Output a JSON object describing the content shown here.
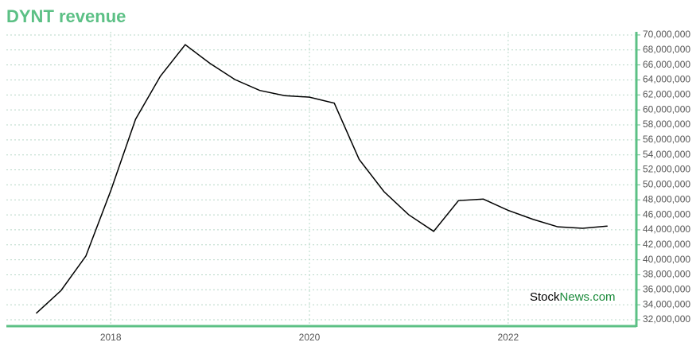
{
  "chart_data": {
    "type": "line",
    "title": "DYNT revenue",
    "x": [
      2017.25,
      2017.5,
      2017.75,
      2018.0,
      2018.25,
      2018.5,
      2018.75,
      2019.0,
      2019.25,
      2019.5,
      2019.75,
      2020.0,
      2020.25,
      2020.5,
      2020.75,
      2021.0,
      2021.25,
      2021.5,
      2021.75,
      2022.0,
      2022.25,
      2022.5,
      2022.75,
      2023.0
    ],
    "series": [
      {
        "name": "DYNT revenue",
        "color": "#000000",
        "values": [
          32850000,
          35900000,
          40500000,
          49200000,
          58750000,
          64500000,
          68700000,
          66200000,
          64050000,
          62600000,
          61900000,
          61700000,
          60900000,
          53400000,
          49100000,
          46000000,
          43800000,
          47900000,
          48100000,
          46600000,
          45400000,
          44400000,
          44200000,
          44500000
        ]
      }
    ],
    "xlim": [
      2016.95,
      2023.29
    ],
    "xticks": [
      2018,
      2020,
      2022
    ],
    "ylim": [
      31150000,
      70420000
    ],
    "yticks": [
      {
        "value": 32000000,
        "label": "32,000,000"
      },
      {
        "value": 34000000,
        "label": "34,000,000"
      },
      {
        "value": 36000000,
        "label": "36,000,000"
      },
      {
        "value": 38000000,
        "label": "38,000,000"
      },
      {
        "value": 40000000,
        "label": "40,000,000"
      },
      {
        "value": 42000000,
        "label": "42,000,000"
      },
      {
        "value": 44000000,
        "label": "44,000,000"
      },
      {
        "value": 46000000,
        "label": "46,000,000"
      },
      {
        "value": 48000000,
        "label": "48,000,000"
      },
      {
        "value": 50000000,
        "label": "50,000,000"
      },
      {
        "value": 52000000,
        "label": "52,000,000"
      },
      {
        "value": 54000000,
        "label": "54,000,000"
      },
      {
        "value": 56000000,
        "label": "56,000,000"
      },
      {
        "value": 58000000,
        "label": "58,000,000"
      },
      {
        "value": 60000000,
        "label": "60,000,000"
      },
      {
        "value": 62000000,
        "label": "62,000,000"
      },
      {
        "value": 64000000,
        "label": "64,000,000"
      },
      {
        "value": 66000000,
        "label": "66,000,000"
      },
      {
        "value": 68000000,
        "label": "68,000,000"
      },
      {
        "value": 70000000,
        "label": "70,000,000"
      }
    ],
    "grid": true,
    "axis_color": "#5cc085",
    "watermark": [
      "Stock",
      "News.com"
    ]
  }
}
